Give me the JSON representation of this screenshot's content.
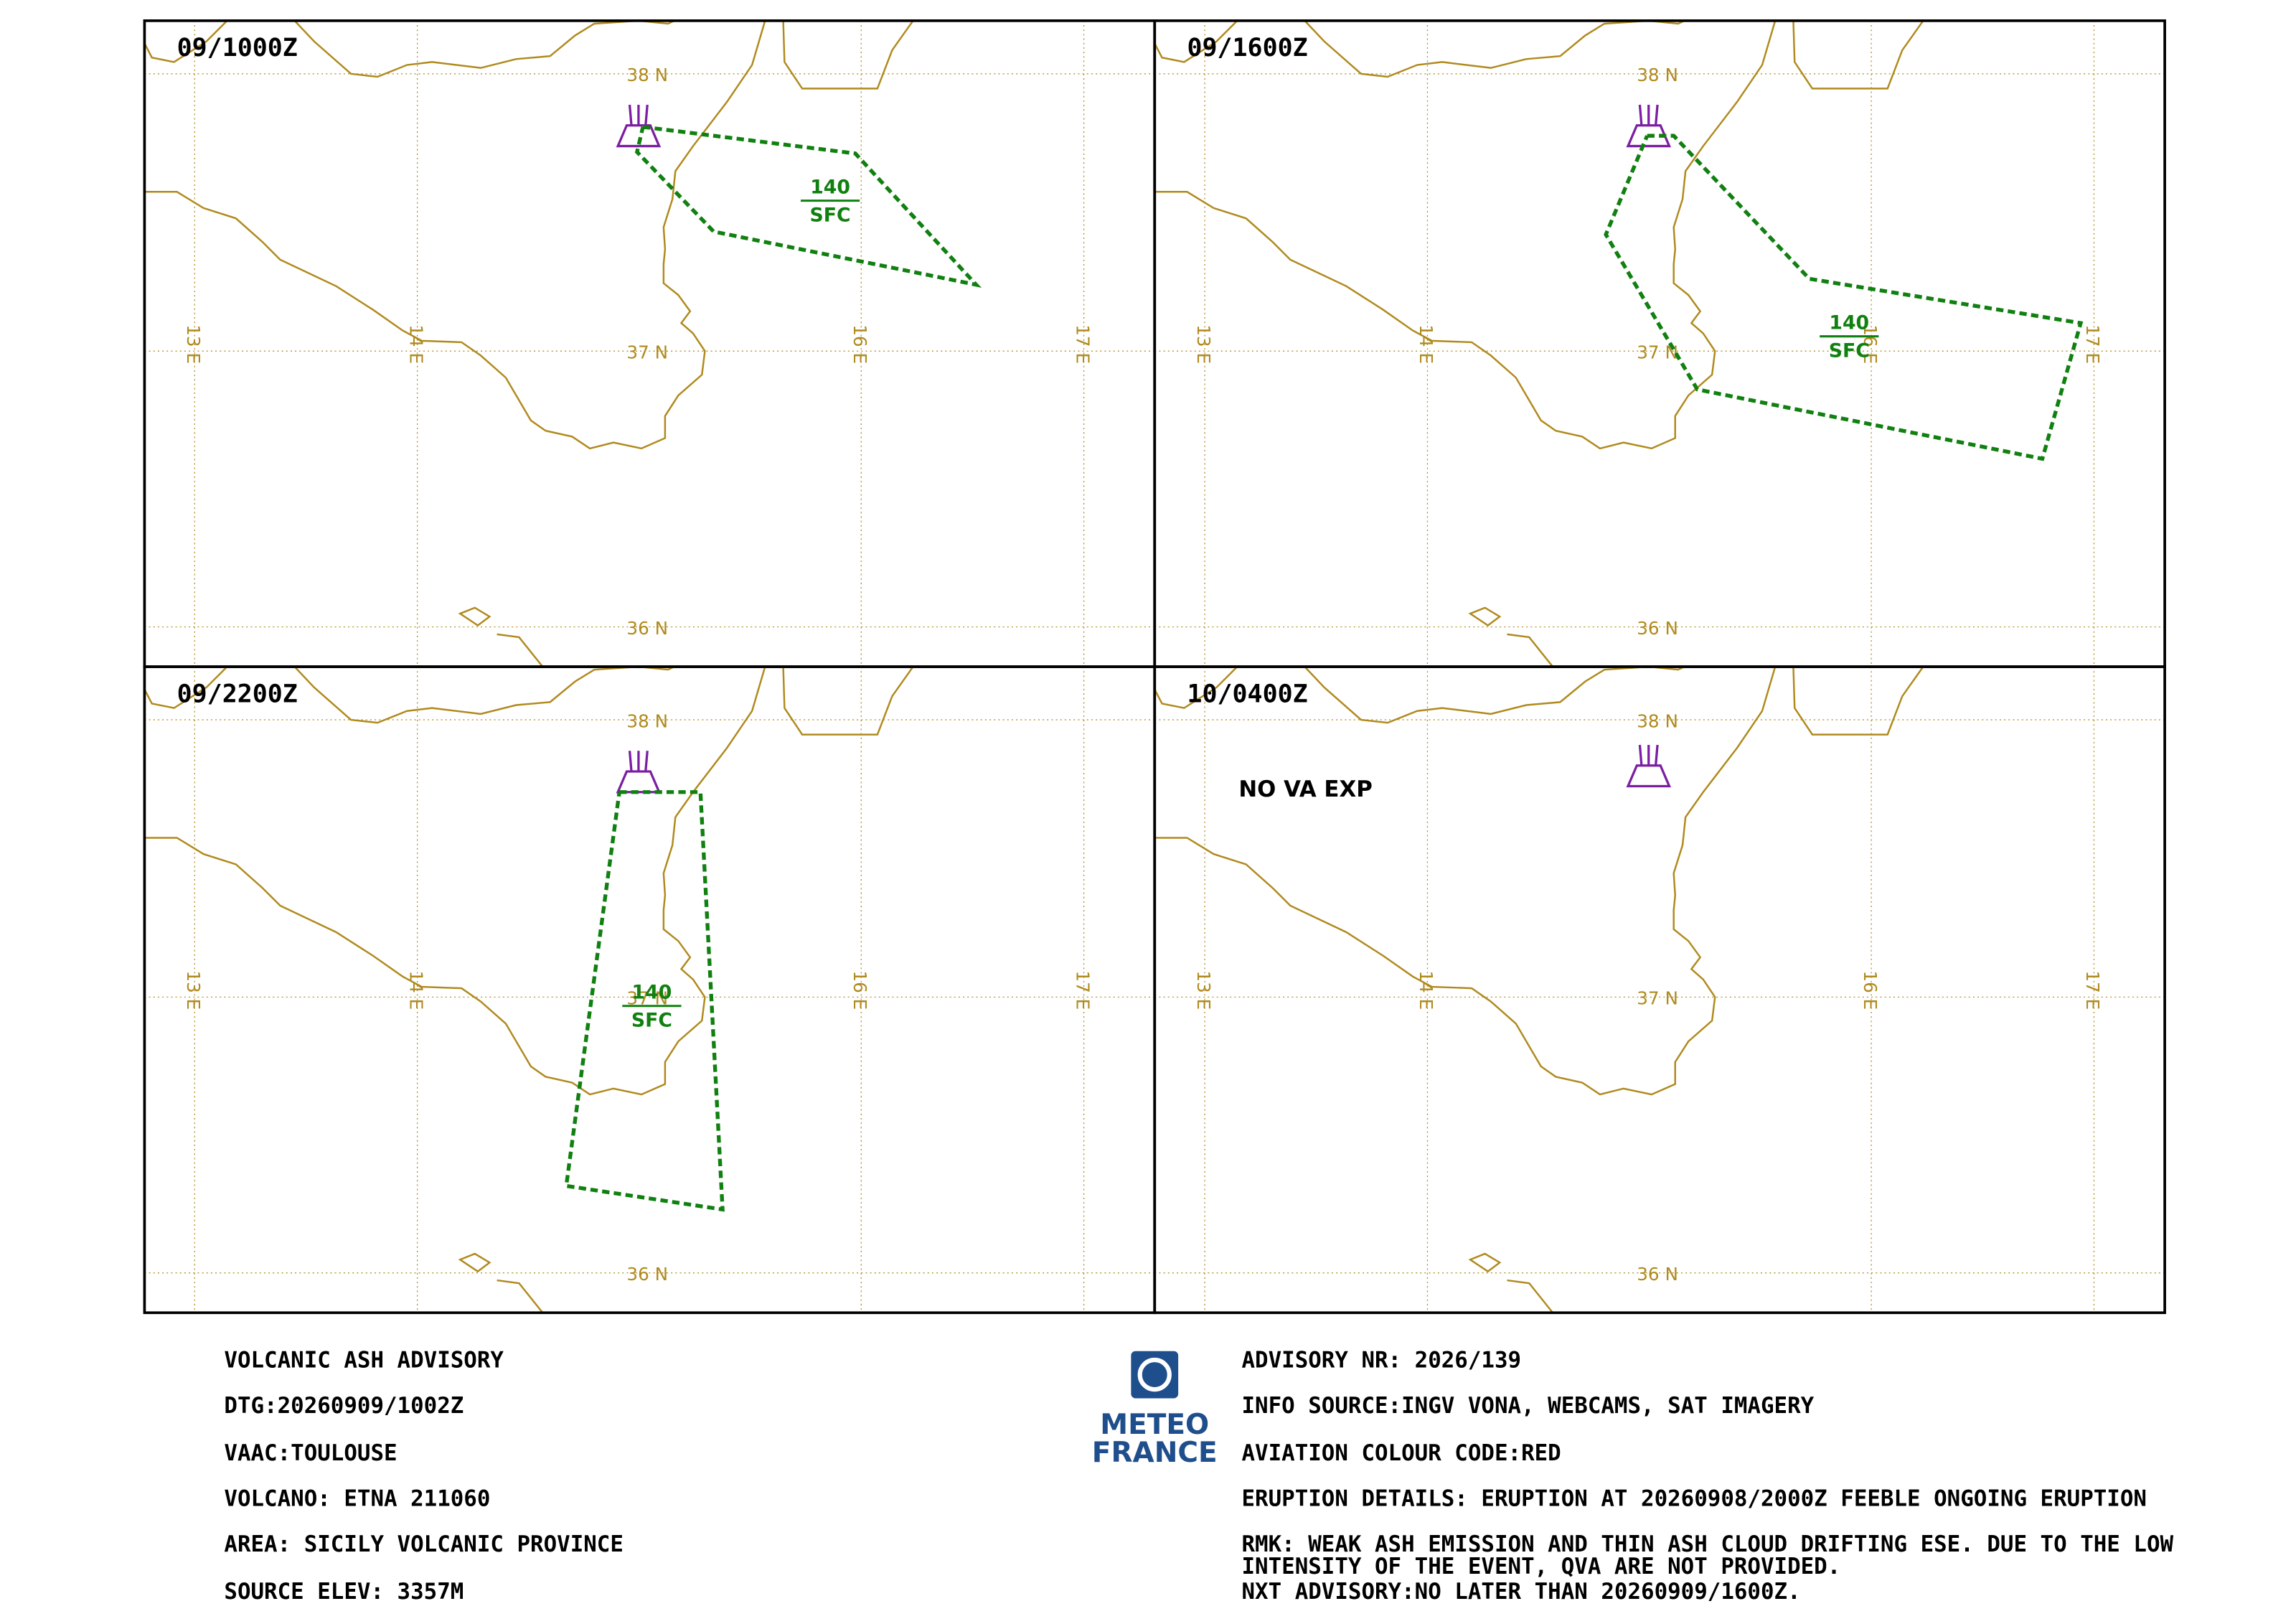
{
  "panels": [
    {
      "time": "09/1000Z",
      "level_top": "140",
      "level_bottom": "SFC"
    },
    {
      "time": "09/1600Z",
      "level_top": "140",
      "level_bottom": "SFC"
    },
    {
      "time": "09/2200Z",
      "level_top": "140",
      "level_bottom": "SFC"
    },
    {
      "time": "10/0400Z",
      "note": "NO VA EXP"
    }
  ],
  "grid": {
    "lat_labels": [
      "38 N",
      "37 N",
      "36 N"
    ],
    "lon_labels": [
      "13 E",
      "14 E",
      "16 E",
      "17 E"
    ]
  },
  "logo": {
    "line1": "METEO",
    "line2": "FRANCE"
  },
  "advisory": {
    "left": [
      "VOLCANIC ASH ADVISORY",
      "DTG:20260909/1002Z",
      "VAAC:TOULOUSE",
      "VOLCANO: ETNA 211060",
      "AREA: SICILY VOLCANIC PROVINCE",
      "SOURCE ELEV: 3357M"
    ],
    "right": [
      "ADVISORY NR: 2026/139",
      "INFO SOURCE:INGV VONA, WEBCAMS, SAT IMAGERY",
      "AVIATION COLOUR CODE:RED",
      "ERUPTION DETAILS: ERUPTION AT 20260908/2000Z FEEBLE ONGOING ERUPTION"
    ],
    "rmk": [
      "RMK: WEAK ASH EMISSION AND THIN ASH CLOUD DRIFTING  ESE. DUE  TO THE LOW",
      "INTENSITY OF THE EVENT,  QVA  ARE NOT PROVIDED."
    ],
    "next": "NXT ADVISORY:NO LATER THAN 20260909/1600Z."
  }
}
